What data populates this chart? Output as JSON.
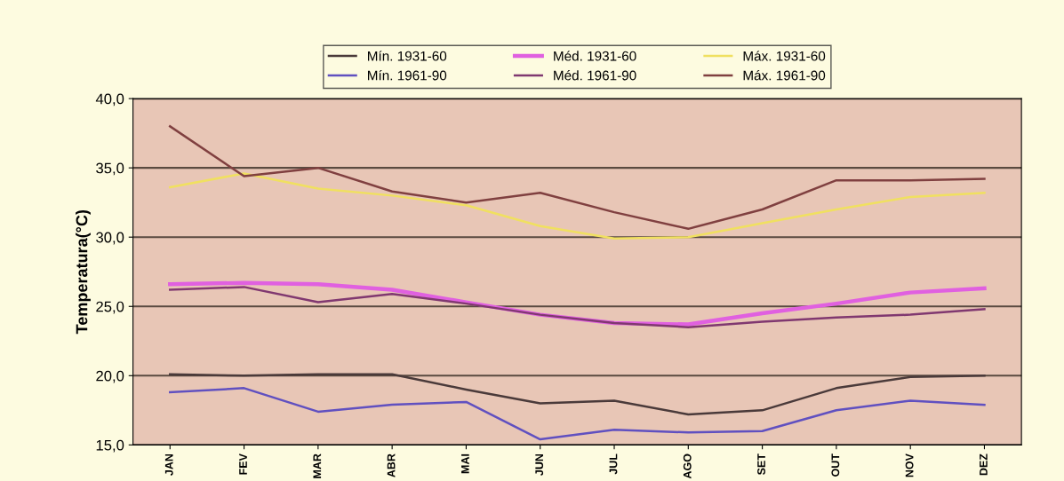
{
  "chart_data": {
    "type": "line",
    "ylabel": "Temperatura(°C)",
    "categories": [
      "JAN",
      "FEV",
      "MAR",
      "ABR",
      "MAI",
      "JUN",
      "JUL",
      "AGO",
      "SET",
      "OUT",
      "NOV",
      "DEZ"
    ],
    "series": [
      {
        "name": "Mín. 1931-60",
        "color": "#4a3a3a",
        "values": [
          20.1,
          20.0,
          20.1,
          20.1,
          19.0,
          18.0,
          18.2,
          17.2,
          17.5,
          19.1,
          19.9,
          20.0
        ]
      },
      {
        "name": "Méd. 1931-60",
        "color": "#e060e0",
        "values": [
          26.6,
          26.7,
          26.6,
          26.2,
          25.3,
          24.4,
          23.8,
          23.7,
          24.5,
          25.2,
          26.0,
          26.3
        ]
      },
      {
        "name": "Máx. 1931-60",
        "color": "#f0e060",
        "values": [
          33.6,
          34.6,
          33.5,
          33.0,
          32.3,
          30.8,
          29.9,
          30.0,
          31.0,
          32.0,
          32.9,
          33.2
        ]
      },
      {
        "name": "Mín. 1961-90",
        "color": "#6050c0",
        "values": [
          18.8,
          19.1,
          17.4,
          17.9,
          18.1,
          15.4,
          16.1,
          15.9,
          16.0,
          17.5,
          18.2,
          17.9
        ]
      },
      {
        "name": "Méd. 1961-90",
        "color": "#803870",
        "values": [
          26.2,
          26.4,
          25.3,
          25.9,
          25.2,
          24.4,
          23.8,
          23.5,
          23.9,
          24.2,
          24.4,
          24.8
        ]
      },
      {
        "name": "Máx. 1961-90",
        "color": "#804040",
        "values": [
          38.0,
          34.4,
          35.0,
          33.3,
          32.5,
          33.2,
          31.8,
          30.6,
          32.0,
          34.1,
          34.1,
          34.2
        ]
      }
    ],
    "ylim": [
      15,
      40
    ],
    "yticks": [
      {
        "value": 15,
        "label": "15,0"
      },
      {
        "value": 20,
        "label": "20,0"
      },
      {
        "value": 25,
        "label": "25,0"
      },
      {
        "value": 30,
        "label": "30,0"
      },
      {
        "value": 35,
        "label": "35,0"
      },
      {
        "value": 40,
        "label": "40,0"
      }
    ],
    "grid": "y",
    "legend": "top",
    "marker": "none",
    "line_style": "solid"
  }
}
